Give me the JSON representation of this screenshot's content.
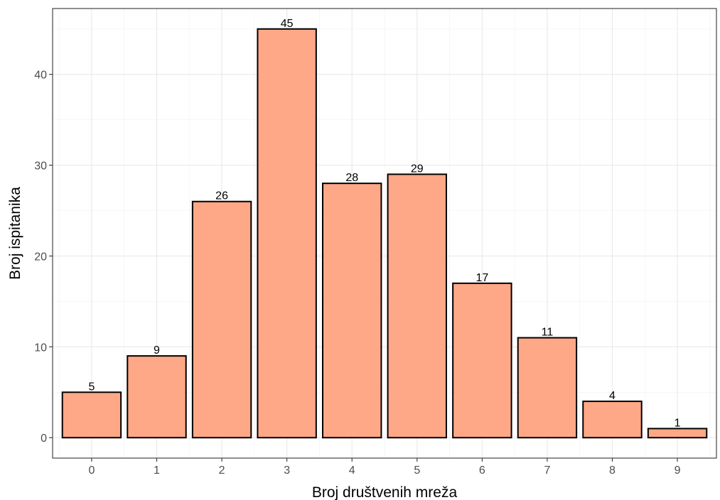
{
  "chart_data": {
    "type": "bar",
    "categories": [
      "0",
      "1",
      "2",
      "3",
      "4",
      "5",
      "6",
      "7",
      "8",
      "9"
    ],
    "values": [
      5,
      9,
      26,
      45,
      28,
      29,
      17,
      11,
      4,
      1
    ],
    "data_labels": [
      "5",
      "9",
      "26",
      "45",
      "28",
      "29",
      "17",
      "11",
      "4",
      "1"
    ],
    "title": "",
    "xlabel": "Broj društvenih mreža",
    "ylabel": "Broj ispitanika",
    "ylim": [
      -2.25,
      47.25
    ],
    "yticks": [
      0,
      10,
      20,
      30,
      40
    ],
    "ytick_labels": [
      "0",
      "10",
      "20",
      "30",
      "40"
    ],
    "grid": true,
    "legend": "none",
    "colors": {
      "bar_fill": "#FFA887",
      "bar_stroke": "#000000",
      "grid_major": "#EBEBEB",
      "grid_minor": "#F4F4F4",
      "panel_border": "#333333",
      "tick_label": "#4D4D4D"
    }
  }
}
